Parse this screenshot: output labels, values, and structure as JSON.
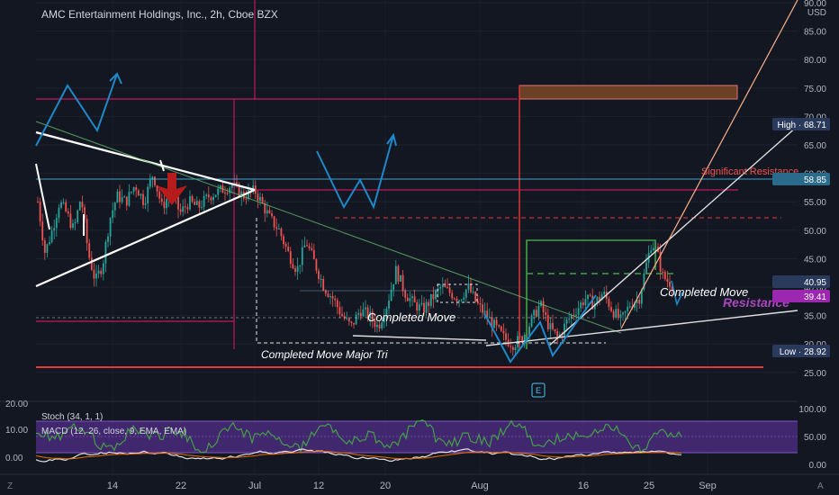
{
  "header": {
    "title": "AMC Entertainment Holdings, Inc., 2h, Cboe BZX",
    "currency": "USD"
  },
  "colors": {
    "background": "#131722",
    "up": "#26a69a",
    "down": "#ef5350",
    "grid": "#1e222d",
    "axis_text": "#b2b5be"
  },
  "price_axis": {
    "ticks": [
      "90.00",
      "85.00",
      "80.00",
      "75.00",
      "70.00",
      "65.00",
      "60.00",
      "55.00",
      "50.00",
      "45.00",
      "40.00",
      "35.00",
      "30.00",
      "25.00"
    ],
    "badges": [
      {
        "text": "High · 68.71",
        "color": "#2a3a5c"
      },
      {
        "text": "58.85",
        "color": "#2a6a8a"
      },
      {
        "text": "40.95",
        "color": "#2a3a5c"
      },
      {
        "text": "39.41",
        "color": "#9c27b0"
      },
      {
        "text": "Low · 28.92",
        "color": "#2a3a5c"
      }
    ]
  },
  "time_axis": {
    "labels": [
      "14",
      "22",
      "Jul",
      "12",
      "20",
      "Aug",
      "16",
      "25",
      "Sep"
    ],
    "left_glyph": "Z",
    "right_glyph": "A"
  },
  "annotations": {
    "significant_resistance": "Significant Resistance",
    "completed_move_1": "Completed Move",
    "completed_move_2": "Completed Move",
    "completed_move_major": "Completed Move Major Tri",
    "resistance": "Resistance",
    "earnings_marker": "E"
  },
  "indicator_pane": {
    "stoch_label": "Stoch (34, 1, 1)",
    "macd_label": "MACD (12, 26, close, 9, EMA, EMA)",
    "left_ticks": [
      "20.00",
      "10.00",
      "0.00"
    ],
    "right_ticks": [
      "100.00",
      "50.00",
      "0.00"
    ]
  },
  "chart_data": {
    "type": "candlestick",
    "title": "AMC Entertainment Holdings, Inc., 2h, Cboe BZX",
    "ylim": [
      25,
      90
    ],
    "high": 68.71,
    "low": 28.92,
    "last_prices": [
      40.95,
      39.41
    ],
    "horizontal_levels": [
      58.85,
      57.5,
      52.5,
      26
    ],
    "x_ticks": [
      "14",
      "22",
      "Jul",
      "12",
      "20",
      "Aug",
      "16",
      "25",
      "Sep"
    ]
  }
}
